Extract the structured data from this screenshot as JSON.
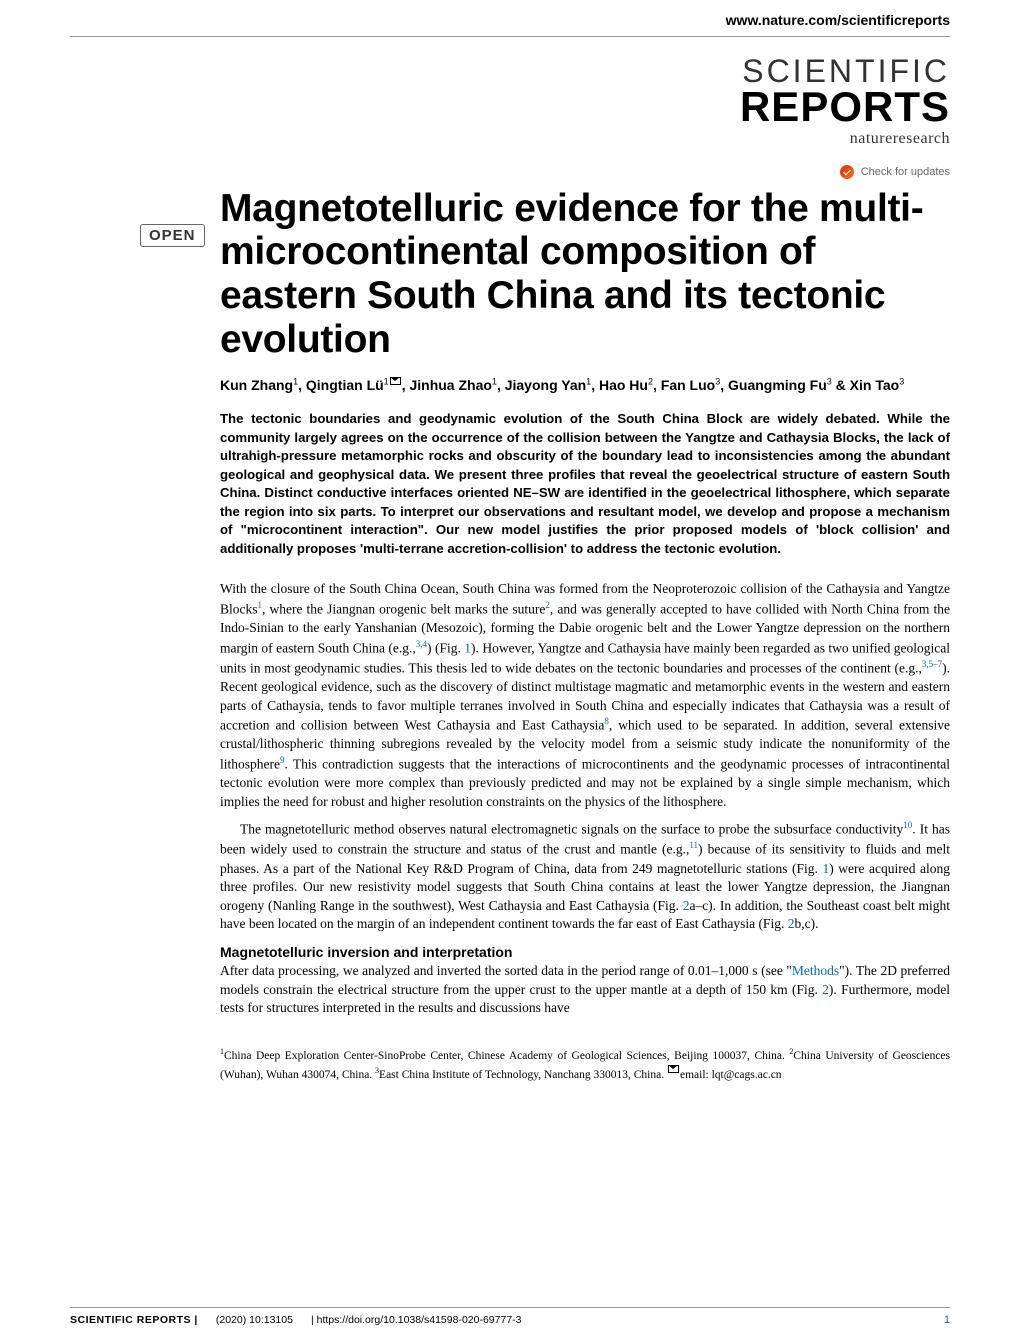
{
  "header": {
    "url": "www.nature.com/scientificreports"
  },
  "logo": {
    "line1": "SCIENTIFIC",
    "line2": "REPORTS",
    "subtitle": "natureresearch"
  },
  "check_updates": "Check for updates",
  "open_badge": "OPEN",
  "article": {
    "title": "Magnetotelluric evidence for the multi-microcontinental composition of eastern South China and its tectonic evolution",
    "authors_html": "Kun Zhang<sup>1</sup>, Qingtian Lü<sup>1</sup><span class='envelope-icon' data-name='envelope-icon' data-interactable='false'></span>, Jinhua Zhao<sup>1</sup>, Jiayong Yan<sup>1</sup>, Hao Hu<sup>2</sup>, Fan Luo<sup>3</sup>, Guangming Fu<sup>3</sup> & Xin Tao<sup>3</sup>",
    "abstract": "The tectonic boundaries and geodynamic evolution of the South China Block are widely debated. While the community largely agrees on the occurrence of the collision between the Yangtze and Cathaysia Blocks, the lack of ultrahigh-pressure metamorphic rocks and obscurity of the boundary lead to inconsistencies among the abundant geological and geophysical data. We present three profiles that reveal the geoelectrical structure of eastern South China. Distinct conductive interfaces oriented NE–SW are identified in the geoelectrical lithosphere, which separate the region into six parts. To interpret our observations and resultant model, we develop and propose a mechanism of \"microcontinent interaction\". Our new model justifies the prior proposed models of 'block collision' and additionally proposes 'multi-terrane accretion-collision' to address the tectonic evolution."
  },
  "body": {
    "para1_html": "With the closure of the South China Ocean, South China was formed from the Neoproterozoic collision of the Cathaysia and Yangtze Blocks<span class='ref-link'>1</span>, where the Jiangnan orogenic belt marks the suture<span class='ref-link'>2</span>, and was generally accepted to have collided with North China from the Indo-Sinian to the early Yanshanian (Mesozoic), forming the Dabie orogenic belt and the Lower Yangtze depression on the northern margin of eastern South China (e.g.,<span class='ref-link'>3,4</span>) (Fig. <span class='ref-link-inline'>1</span>). However, Yangtze and Cathaysia have mainly been regarded as two unified geological units in most geodynamic studies. This thesis led to wide debates on the tectonic boundaries and processes of the continent (e.g.,<span class='ref-link'>3,5–7</span>). Recent geological evidence, such as the discovery of distinct multistage magmatic and metamorphic events in the western and eastern parts of Cathaysia, tends to favor multiple terranes involved in South China and especially indicates that Cathaysia was a result of accretion and collision between West Cathaysia and East Cathaysia<span class='ref-link'>8</span>, which used to be separated. In addition, several extensive crustal/lithospheric thinning subregions revealed by the velocity model from a seismic study indicate the nonuniformity of the lithosphere<span class='ref-link'>9</span>. This contradiction suggests that the interactions of microcontinents and the geodynamic processes of intracontinental tectonic evolution were more complex than previously predicted and may not be explained by a single simple mechanism, which implies the need for robust and higher resolution constraints on the physics of the lithosphere.",
    "para2_html": "<span class='indent'></span>The magnetotelluric method observes natural electromagnetic signals on the surface to probe the subsurface conductivity<span class='ref-link'>10</span>. It has been widely used to constrain the structure and status of the crust and mantle (e.g.,<span class='ref-link'>11</span>) because of its sensitivity to fluids and melt phases. As a part of the National Key R&D Program of China, data from 249 magnetotelluric stations (Fig. <span class='ref-link-inline'>1</span>) were acquired along three profiles. Our new resistivity model suggests that South China contains at least the lower Yangtze depression, the Jiangnan orogeny (Nanling Range in the southwest), West Cathaysia and East Cathaysia (Fig. <span class='ref-link-inline'>2</span>a–c). In addition, the Southeast coast belt might have been located on the margin of an independent continent towards the far east of East Cathaysia (Fig. <span class='ref-link-inline'>2</span>b,c).",
    "section_heading": "Magnetotelluric inversion and interpretation",
    "para3_html": "After data processing, we analyzed and inverted the sorted data in the period range of 0.01–1,000 s (see \"<span class='ref-link-inline'>Methods</span>\"). The 2D preferred models constrain the electrical structure from the upper crust to the upper mantle at a depth of 150 km (Fig. <span class='ref-link-inline'>2</span>). Furthermore, model tests for structures interpreted in the results and discussions have"
  },
  "affiliations_html": "<sup>1</sup>China Deep Exploration Center-SinoProbe Center, Chinese Academy of Geological Sciences, Beijing 100037, China. <sup>2</sup>China University of Geosciences (Wuhan), Wuhan 430074, China. <sup>3</sup>East China Institute of Technology, Nanchang 330013, China. <span class='envelope-icon' data-name='envelope-icon' data-interactable='false'></span>email: lqt@cags.ac.cn",
  "footer": {
    "journal": "SCIENTIFIC REPORTS |",
    "citation": "(2020) 10:13105",
    "doi": "| https://doi.org/10.1038/s41598-020-69777-3",
    "page": "1"
  }
}
